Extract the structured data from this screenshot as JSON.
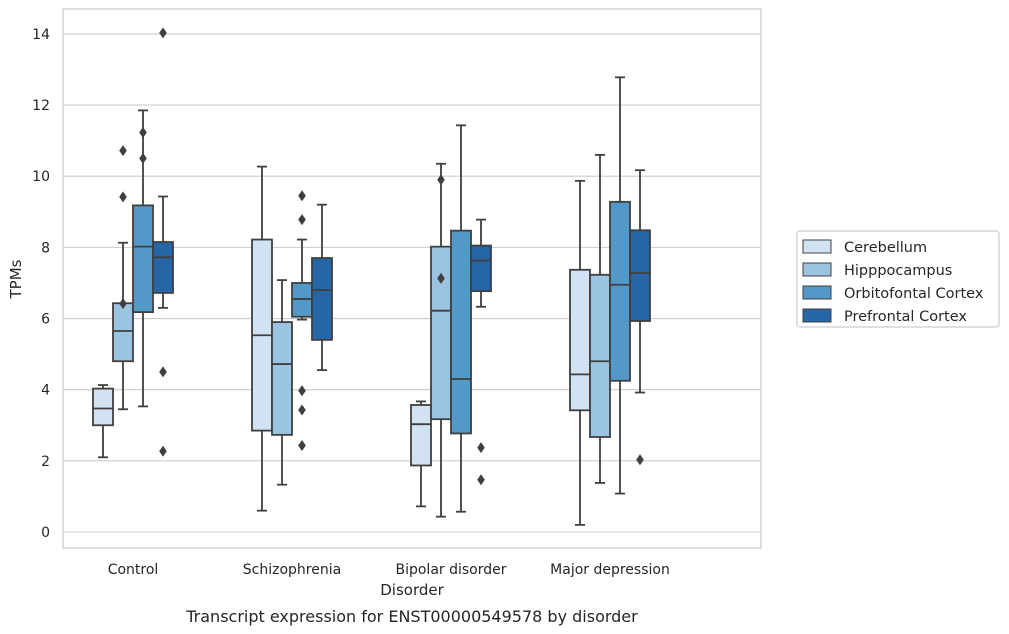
{
  "caption": "Transcript expression for ENST00000549578 by disorder",
  "chart_data": {
    "type": "box",
    "xlabel": "Disorder",
    "ylabel": "TPMs",
    "ylim": [
      -0.45,
      14.7
    ],
    "yticks": [
      0,
      2,
      4,
      6,
      8,
      10,
      12,
      14
    ],
    "grid": "horizontal",
    "legend_placement": "right",
    "categories": [
      "Control",
      "Schizophrenia",
      "Bipolar disorder",
      "Major depression"
    ],
    "series": [
      {
        "name": "Cerebellum",
        "color": "#d1e2f2",
        "boxes": [
          {
            "min": 2.1,
            "q1": 3.0,
            "median": 3.47,
            "q3": 4.03,
            "max": 4.13,
            "outliers": []
          },
          {
            "min": 0.6,
            "q1": 2.85,
            "median": 5.53,
            "q3": 8.22,
            "max": 10.27,
            "outliers": []
          },
          {
            "min": 0.72,
            "q1": 1.87,
            "median": 3.03,
            "q3": 3.57,
            "max": 3.67,
            "outliers": []
          },
          {
            "min": 0.2,
            "q1": 3.42,
            "median": 4.43,
            "q3": 7.37,
            "max": 9.87,
            "outliers": []
          }
        ]
      },
      {
        "name": "Hipppocampus",
        "color": "#9ac4e0",
        "boxes": [
          {
            "min": 3.45,
            "q1": 4.8,
            "median": 5.65,
            "q3": 6.43,
            "max": 8.13,
            "outliers": [
              10.72,
              9.42,
              6.42
            ]
          },
          {
            "min": 1.33,
            "q1": 2.73,
            "median": 4.72,
            "q3": 5.9,
            "max": 7.08,
            "outliers": []
          },
          {
            "min": 0.43,
            "q1": 3.17,
            "median": 6.22,
            "q3": 8.02,
            "max": 10.35,
            "outliers": [
              9.9,
              7.13
            ]
          },
          {
            "min": 1.38,
            "q1": 2.67,
            "median": 4.8,
            "q3": 7.23,
            "max": 10.6,
            "outliers": []
          }
        ]
      },
      {
        "name": "Orbitofontal Cortex",
        "color": "#5399c8",
        "boxes": [
          {
            "min": 3.53,
            "q1": 6.18,
            "median": 8.02,
            "q3": 9.18,
            "max": 11.85,
            "outliers": [
              11.23,
              10.5
            ]
          },
          {
            "min": 5.97,
            "q1": 6.05,
            "median": 6.55,
            "q3": 7.0,
            "max": 8.22,
            "outliers": [
              9.45,
              8.78,
              3.97,
              3.43,
              2.43
            ]
          },
          {
            "min": 0.57,
            "q1": 2.77,
            "median": 4.3,
            "q3": 8.47,
            "max": 11.43,
            "outliers": []
          },
          {
            "min": 1.08,
            "q1": 4.25,
            "median": 6.95,
            "q3": 9.28,
            "max": 12.78,
            "outliers": []
          }
        ]
      },
      {
        "name": "Prefrontal Cortex",
        "color": "#2666a6",
        "boxes": [
          {
            "min": 6.3,
            "q1": 6.72,
            "median": 7.72,
            "q3": 8.15,
            "max": 9.43,
            "outliers": [
              14.03,
              4.5,
              2.27
            ]
          },
          {
            "min": 4.55,
            "q1": 5.4,
            "median": 6.8,
            "q3": 7.7,
            "max": 9.2,
            "outliers": []
          },
          {
            "min": 6.33,
            "q1": 6.77,
            "median": 7.63,
            "q3": 8.05,
            "max": 8.78,
            "outliers": [
              2.37,
              1.47
            ]
          },
          {
            "min": 3.92,
            "q1": 5.93,
            "median": 7.28,
            "q3": 8.48,
            "max": 10.17,
            "outliers": [
              2.03
            ]
          }
        ]
      }
    ]
  }
}
